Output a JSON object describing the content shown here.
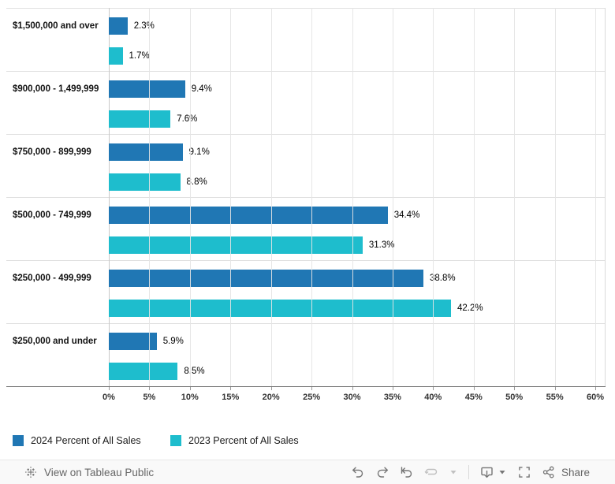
{
  "chart_data": {
    "type": "bar",
    "orientation": "horizontal",
    "title": "",
    "categories": [
      "$1,500,000 and over",
      "$900,000 - 1,499,999",
      "$750,000 - 899,999",
      "$500,000 - 749,999",
      "$250,000 - 499,999",
      "$250,000 and under"
    ],
    "series": [
      {
        "name": "2024 Percent of All Sales",
        "color": "#2077B4",
        "values": [
          2.3,
          9.4,
          9.1,
          34.4,
          38.8,
          5.9
        ],
        "labels": [
          "2.3%",
          "9.4%",
          "9.1%",
          "34.4%",
          "38.8%",
          "5.9%"
        ]
      },
      {
        "name": "2023 Percent of All Sales",
        "color": "#1EBDCD",
        "values": [
          1.7,
          7.6,
          8.8,
          31.3,
          42.2,
          8.5
        ],
        "labels": [
          "1.7%",
          "7.6%",
          "8.8%",
          "31.3%",
          "42.2%",
          "8.5%"
        ]
      }
    ],
    "x_axis": {
      "min": 0,
      "max": 60,
      "ticks": [
        "0%",
        "5%",
        "10%",
        "15%",
        "20%",
        "25%",
        "30%",
        "35%",
        "40%",
        "45%",
        "50%",
        "55%",
        "60%"
      ],
      "grid": true
    },
    "legend_position": "bottom"
  },
  "legend": {
    "items": [
      {
        "label": "2024 Percent of All Sales",
        "color": "#2077B4"
      },
      {
        "label": "2023 Percent of All Sales",
        "color": "#1EBDCD"
      }
    ]
  },
  "toolbar": {
    "view_on_tableau": "View on Tableau Public",
    "share_label": "Share",
    "icons": [
      "tableau-logo-icon",
      "undo-icon",
      "redo-icon",
      "reset-icon",
      "refresh-icon",
      "refresh-caret-icon",
      "download-icon",
      "download-caret-icon",
      "fullscreen-icon",
      "share-icon"
    ]
  }
}
